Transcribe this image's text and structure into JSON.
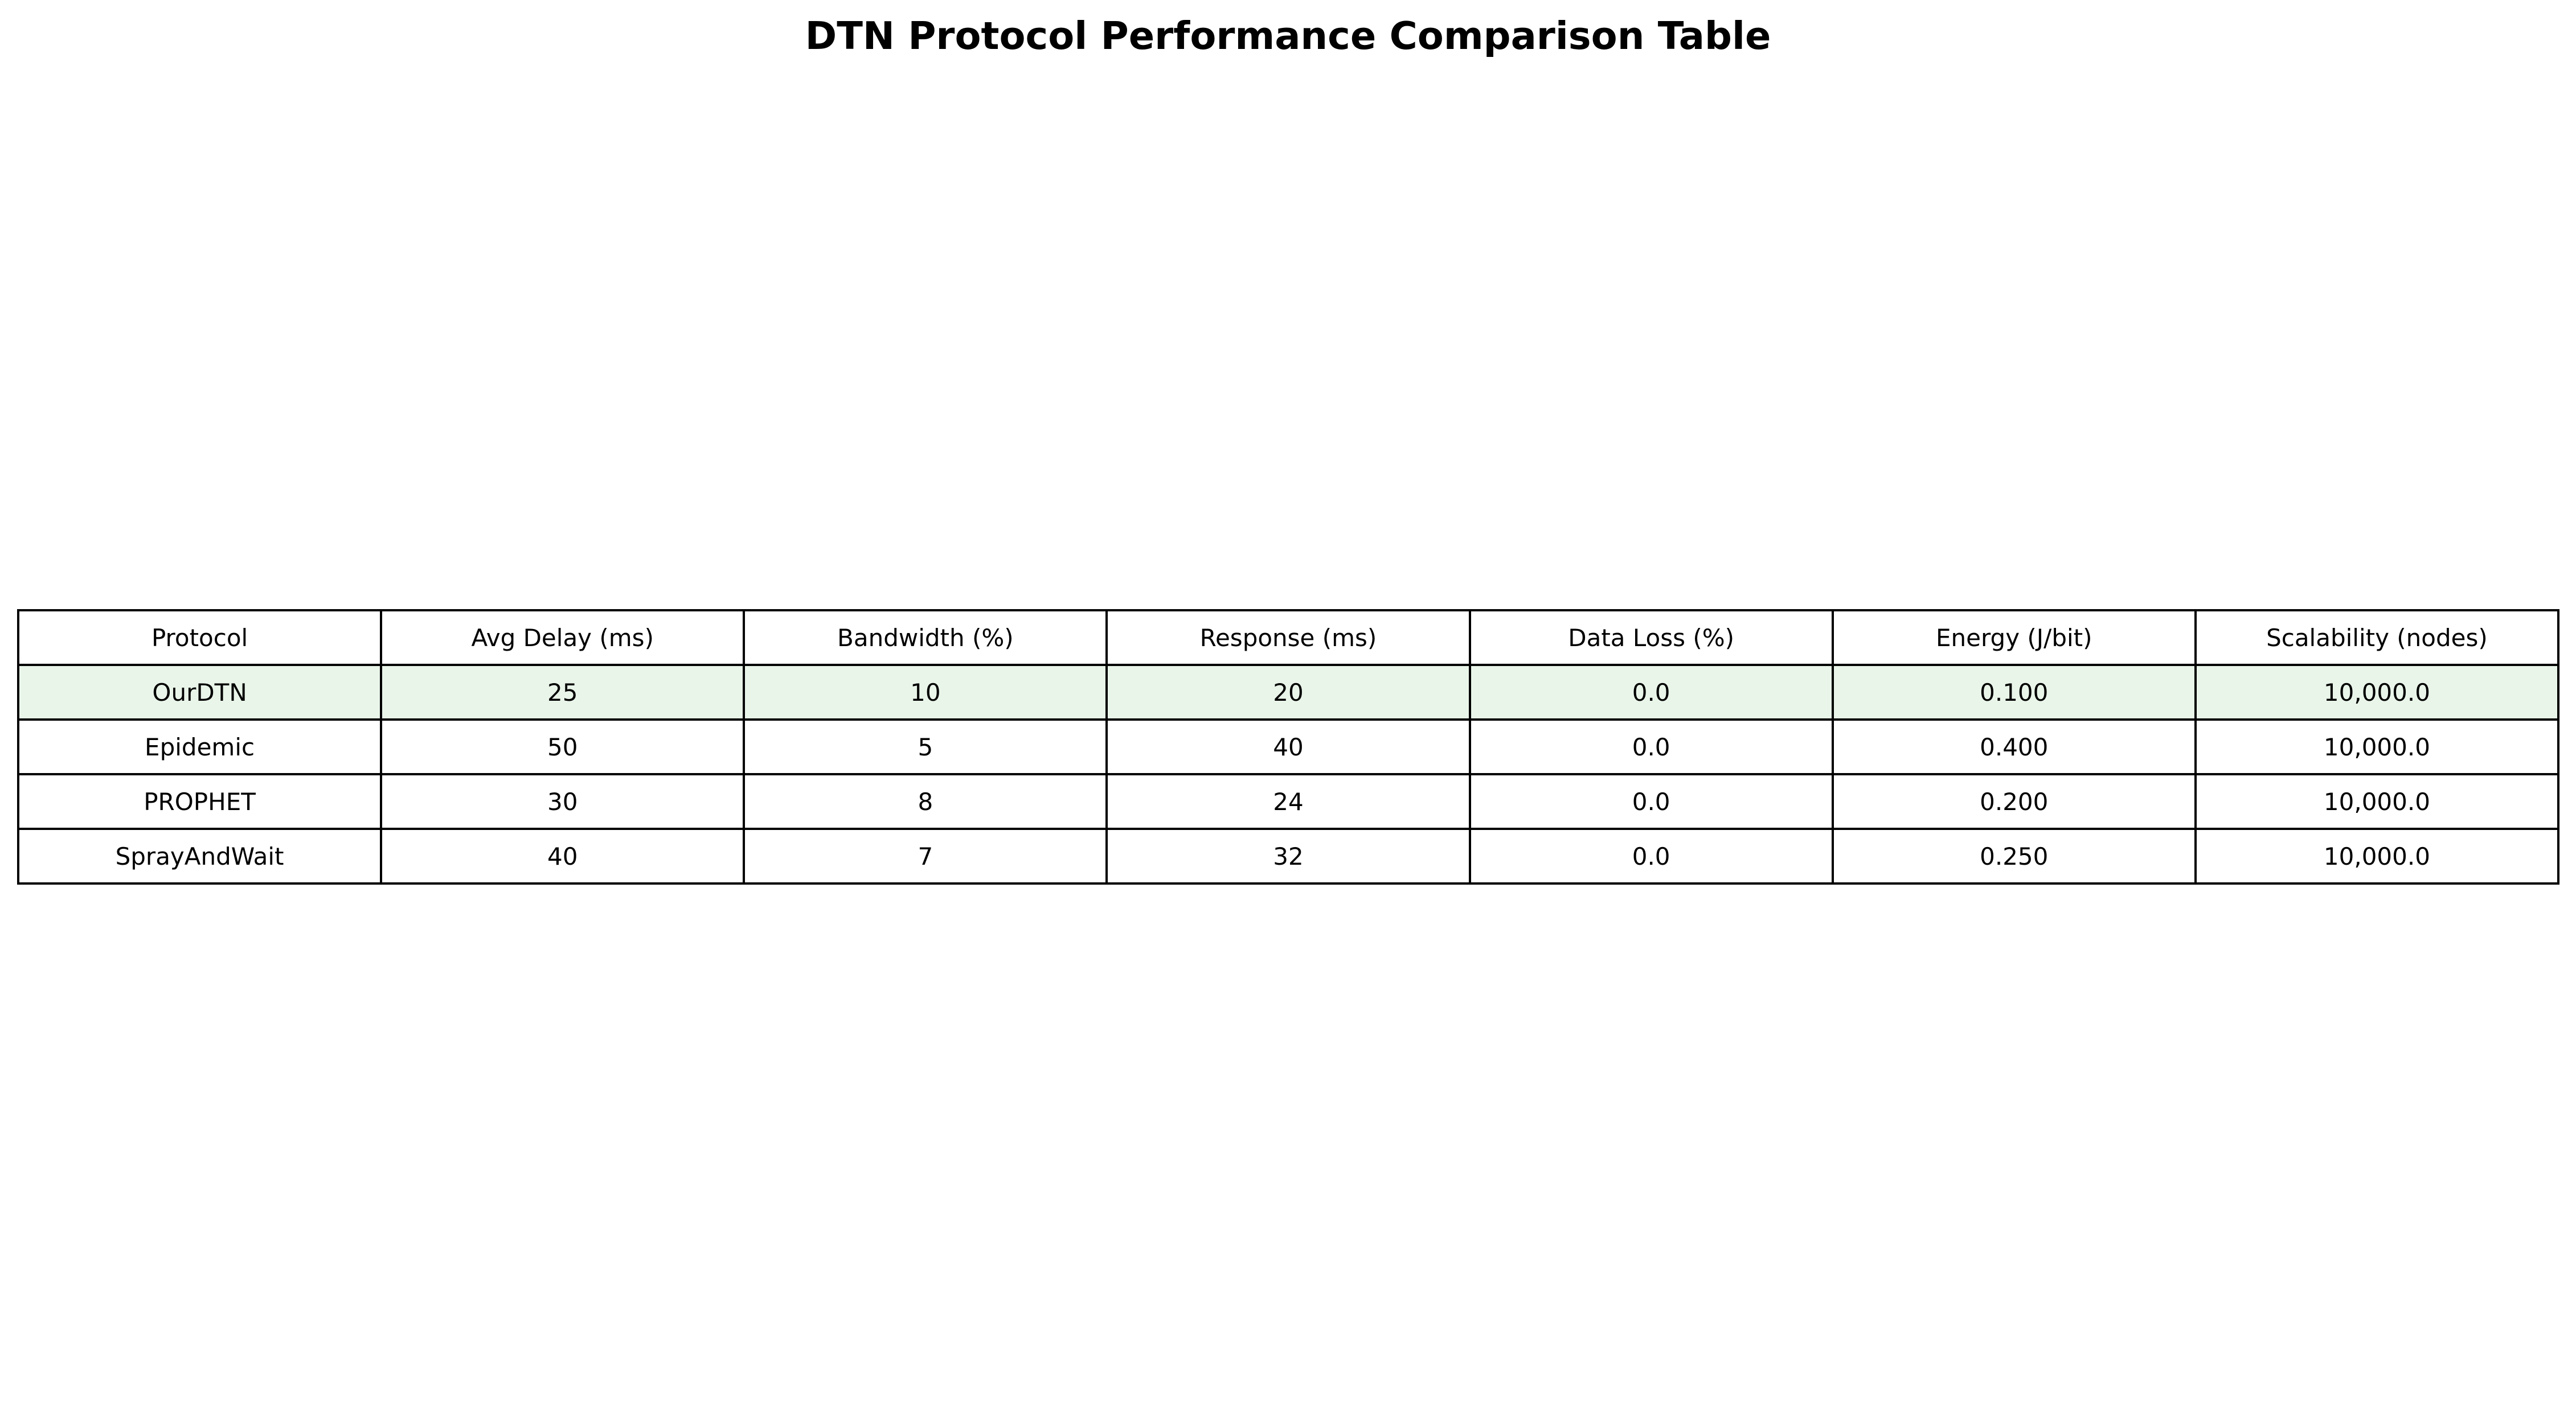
{
  "chart_data": {
    "type": "table",
    "title": "DTN Protocol Performance Comparison Table",
    "columns": [
      "Protocol",
      "Avg Delay (ms)",
      "Bandwidth (%)",
      "Response (ms)",
      "Data Loss (%)",
      "Energy (J/bit)",
      "Scalability (nodes)"
    ],
    "rows": [
      [
        "OurDTN",
        "25",
        "10",
        "20",
        "0.0",
        "0.100",
        "10,000.0"
      ],
      [
        "Epidemic",
        "50",
        "5",
        "40",
        "0.0",
        "0.400",
        "10,000.0"
      ],
      [
        "PROPHET",
        "30",
        "8",
        "24",
        "0.0",
        "0.200",
        "10,000.0"
      ],
      [
        "SprayAndWait",
        "40",
        "7",
        "32",
        "0.0",
        "0.250",
        "10,000.0"
      ]
    ],
    "highlighted_row": 0
  },
  "colors": {
    "highlight_row_background": "#e9f5e9",
    "border": "#000000",
    "text": "#000000"
  }
}
